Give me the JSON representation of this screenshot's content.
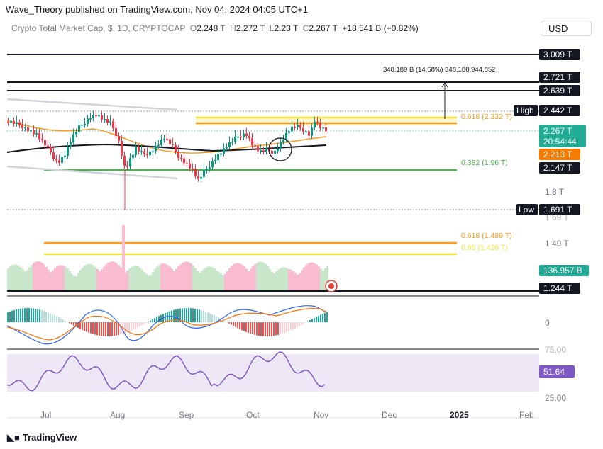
{
  "header": {
    "published": "Wave_Theory published on TradingView.com, Nov 04, 2024 04:05 UTC+1"
  },
  "symbol": {
    "name": "Crypto Total Market Cap, $, 1D, CRYPTOCAP",
    "o_label": "O",
    "o": "2.248 T",
    "h_label": "H",
    "h": "2.272 T",
    "l_label": "L",
    "l": "2.23 T",
    "c_label": "C",
    "c": "2.267 T",
    "change": "+18.541 B (+0.82%)"
  },
  "currency_button": "USD",
  "price_tags": {
    "level_3009": "3.009 T",
    "level_2721": "2.721 T",
    "level_2639": "2.639 T",
    "high_label": "High",
    "high": "2.442 T",
    "last": "2.267 T",
    "countdown": "20:54:44",
    "ma": "2.213 T",
    "level_2147": "2.147 T",
    "axis_18": "1.8 T",
    "axis_169": "1.69 T",
    "low_label": "Low",
    "low": "1.691 T",
    "axis_149": "1.49 T",
    "volume": "136.957 B",
    "level_1244": "1.244 T",
    "macd_zero": "0",
    "rsi_75": "75.00",
    "rsi_value": "51.64",
    "rsi_25": "25.00"
  },
  "annotations": {
    "measure": "348.189 B (14.68%) 348,188,944,852",
    "fib_0618_upper": "0.618 (2.332 T)",
    "fib_0382": "0.382 (1.96 T)",
    "fib_0618_lower": "0.618 (1.489 T)",
    "fib_065_lower": "0.65 (1.426 T)"
  },
  "time_axis": [
    "Jul",
    "Aug",
    "Sep",
    "Oct",
    "Nov",
    "Dec",
    "2025",
    "Feb"
  ],
  "colors": {
    "orange": "#f59b22",
    "yellow": "#f7e23e",
    "green": "#4caf50",
    "tag_green": "#22ab94",
    "tag_orange": "#f57c00",
    "tag_black": "#131722",
    "rsi": "#7e57c2",
    "macd": "#2962ff",
    "signal": "#ff6d00"
  },
  "footer": {
    "brand": "TradingView"
  }
}
